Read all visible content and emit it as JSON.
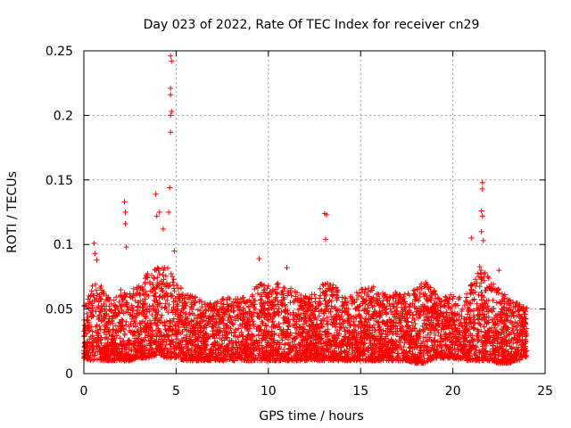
{
  "chart_data": {
    "type": "scatter",
    "title": "Day 023 of 2022, Rate Of TEC Index for receiver cn29",
    "xlabel": "GPS time / hours",
    "ylabel": "ROTI / TECUs",
    "xlim": [
      0,
      25
    ],
    "ylim": [
      0,
      0.25
    ],
    "xticks": [
      0,
      5,
      10,
      15,
      20,
      25
    ],
    "xtick_labels": [
      "0",
      "5",
      "10",
      "15",
      "20",
      "25"
    ],
    "yticks": [
      0,
      0.05,
      0.1,
      0.15,
      0.2,
      0.25
    ],
    "ytick_labels": [
      "0",
      "0.05",
      "0.1",
      "0.15",
      "0.2",
      "0.25"
    ],
    "grid": true,
    "marker": "+",
    "color": "#ff0000",
    "series": [
      {
        "name": "ROTI",
        "envelope": {
          "x": [
            0.0,
            0.5,
            1.0,
            1.5,
            2.0,
            2.5,
            3.0,
            3.5,
            4.0,
            4.5,
            5.0,
            5.5,
            6.0,
            6.5,
            7.0,
            7.5,
            8.0,
            8.5,
            9.0,
            9.5,
            10.0,
            10.5,
            11.0,
            11.5,
            12.0,
            12.5,
            13.0,
            13.5,
            14.0,
            14.5,
            15.0,
            15.5,
            16.0,
            16.5,
            17.0,
            17.5,
            18.0,
            18.5,
            19.0,
            19.5,
            20.0,
            20.5,
            21.0,
            21.5,
            22.0,
            22.5,
            23.0,
            23.5,
            24.0
          ],
          "upper": [
            0.055,
            0.07,
            0.068,
            0.055,
            0.065,
            0.062,
            0.072,
            0.078,
            0.082,
            0.085,
            0.072,
            0.062,
            0.06,
            0.056,
            0.055,
            0.058,
            0.06,
            0.058,
            0.062,
            0.07,
            0.068,
            0.07,
            0.068,
            0.065,
            0.06,
            0.062,
            0.07,
            0.07,
            0.06,
            0.06,
            0.065,
            0.07,
            0.065,
            0.06,
            0.065,
            0.062,
            0.068,
            0.072,
            0.065,
            0.06,
            0.062,
            0.058,
            0.07,
            0.085,
            0.075,
            0.068,
            0.058,
            0.055,
            0.052
          ],
          "lower": [
            0.012,
            0.01,
            0.01,
            0.01,
            0.01,
            0.01,
            0.012,
            0.012,
            0.015,
            0.012,
            0.012,
            0.01,
            0.01,
            0.01,
            0.01,
            0.01,
            0.01,
            0.01,
            0.01,
            0.01,
            0.01,
            0.01,
            0.01,
            0.01,
            0.01,
            0.01,
            0.01,
            0.01,
            0.01,
            0.01,
            0.01,
            0.01,
            0.01,
            0.01,
            0.01,
            0.01,
            0.008,
            0.008,
            0.012,
            0.012,
            0.012,
            0.01,
            0.01,
            0.01,
            0.01,
            0.008,
            0.008,
            0.01,
            0.012
          ]
        },
        "outliers": [
          {
            "x": 0.55,
            "y": 0.101
          },
          {
            "x": 0.6,
            "y": 0.093
          },
          {
            "x": 0.7,
            "y": 0.088
          },
          {
            "x": 2.2,
            "y": 0.133
          },
          {
            "x": 2.25,
            "y": 0.125
          },
          {
            "x": 2.25,
            "y": 0.116
          },
          {
            "x": 2.3,
            "y": 0.098
          },
          {
            "x": 3.9,
            "y": 0.139
          },
          {
            "x": 3.95,
            "y": 0.122
          },
          {
            "x": 4.1,
            "y": 0.125
          },
          {
            "x": 4.3,
            "y": 0.112
          },
          {
            "x": 4.6,
            "y": 0.125
          },
          {
            "x": 4.65,
            "y": 0.144
          },
          {
            "x": 4.7,
            "y": 0.187
          },
          {
            "x": 4.7,
            "y": 0.2
          },
          {
            "x": 4.75,
            "y": 0.203
          },
          {
            "x": 4.7,
            "y": 0.216
          },
          {
            "x": 4.7,
            "y": 0.221
          },
          {
            "x": 4.75,
            "y": 0.242
          },
          {
            "x": 4.7,
            "y": 0.246
          },
          {
            "x": 4.9,
            "y": 0.095
          },
          {
            "x": 9.5,
            "y": 0.089
          },
          {
            "x": 11.0,
            "y": 0.082
          },
          {
            "x": 13.05,
            "y": 0.124
          },
          {
            "x": 13.15,
            "y": 0.123
          },
          {
            "x": 13.1,
            "y": 0.104
          },
          {
            "x": 21.0,
            "y": 0.105
          },
          {
            "x": 21.6,
            "y": 0.148
          },
          {
            "x": 21.6,
            "y": 0.143
          },
          {
            "x": 21.55,
            "y": 0.126
          },
          {
            "x": 21.6,
            "y": 0.122
          },
          {
            "x": 21.55,
            "y": 0.11
          },
          {
            "x": 21.65,
            "y": 0.103
          },
          {
            "x": 22.5,
            "y": 0.08
          }
        ]
      }
    ]
  }
}
